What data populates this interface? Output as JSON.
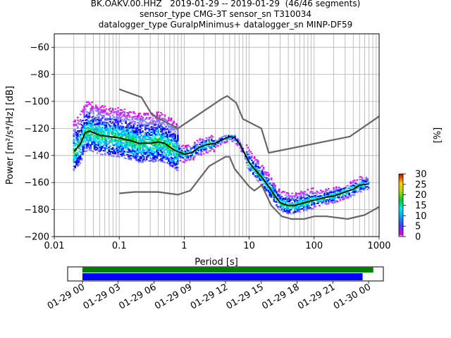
{
  "title_lines": [
    "BK.OAKV.00.HHZ   2019-01-29 -- 2019-01-29  (46/46 segments)",
    "sensor_type CMG-3T sensor_sn T310034",
    "datalogger_type GuralpMinimus+ datalogger_sn MINP-DF59"
  ],
  "chart_data": {
    "type": "heatmap",
    "xlabel": "Period [s]",
    "ylabel": "Power [m²/s⁴/Hz] [dB]",
    "xscale": "log",
    "xlim": [
      0.01,
      1000
    ],
    "ylim": [
      -200,
      -50
    ],
    "xticks": [
      0.01,
      0.1,
      1,
      10,
      100,
      1000
    ],
    "xtick_labels": [
      "0.01",
      "0.1",
      "1",
      "10",
      "100",
      "1000"
    ],
    "yticks": [
      -200,
      -180,
      -160,
      -140,
      -120,
      -100,
      -80,
      -60
    ],
    "ytick_labels": [
      "−200",
      "−180",
      "−160",
      "−140",
      "−120",
      "−100",
      "−80",
      "−60"
    ],
    "grid": true,
    "noise_models": [
      {
        "x": [
          0.1,
          0.22,
          0.32,
          0.8,
          3.8,
          4.6,
          6.3,
          8,
          15.4,
          20,
          354.8,
          1000
        ],
        "y": [
          -91,
          -97,
          -110,
          -120,
          -98,
          -96,
          -101,
          -113,
          -120,
          -138,
          -126,
          -111
        ]
      },
      {
        "x": [
          0.1,
          0.17,
          0.4,
          0.8,
          1.24,
          2.4,
          4.3,
          5,
          6,
          10,
          12,
          15.6,
          21.9,
          31.6,
          45,
          70,
          101,
          154,
          328,
          600,
          1000
        ],
        "y": [
          -168,
          -167,
          -167,
          -169,
          -166,
          -148,
          -141,
          -141,
          -150,
          -163,
          -166,
          -162,
          -177,
          -185,
          -187,
          -187,
          -185,
          -185,
          -187,
          -184,
          -178
        ]
      }
    ],
    "mode_curve": {
      "x": [
        0.02,
        0.025,
        0.03,
        0.035,
        0.05,
        0.07,
        0.1,
        0.15,
        0.2,
        0.3,
        0.4,
        0.5,
        0.7,
        1,
        1.3,
        1.7,
        2.2,
        3,
        4,
        5,
        6,
        7,
        8,
        10,
        12,
        15,
        20,
        25,
        30,
        40,
        50,
        70,
        100,
        150,
        200,
        300,
        400,
        500,
        700
      ],
      "y": [
        -137,
        -132,
        -123,
        -122,
        -125,
        -126,
        -127,
        -129,
        -131,
        -131,
        -130,
        -131,
        -136,
        -139,
        -138,
        -134,
        -132,
        -131,
        -128,
        -126,
        -127,
        -131,
        -136,
        -145,
        -150,
        -155,
        -163,
        -170,
        -175,
        -177,
        -177,
        -175,
        -173,
        -171,
        -170,
        -167,
        -165,
        -162,
        -161
      ]
    },
    "colorbar": {
      "label": "[%]",
      "ticks": [
        0,
        5,
        10,
        15,
        20,
        25,
        30
      ],
      "range": [
        0,
        30
      ]
    },
    "timeline": {
      "ticks": [
        "01-29 00",
        "01-29 03",
        "01-29 06",
        "01-29 09",
        "01-29 12",
        "01-29 15",
        "01-29 18",
        "01-29 21",
        "01-30 00"
      ],
      "bars": [
        {
          "color": "#008000",
          "start_hours": 0,
          "end_hours": 24.4
        },
        {
          "color": "#0000ff",
          "start_hours": 0,
          "end_hours": 23.5
        }
      ]
    }
  }
}
